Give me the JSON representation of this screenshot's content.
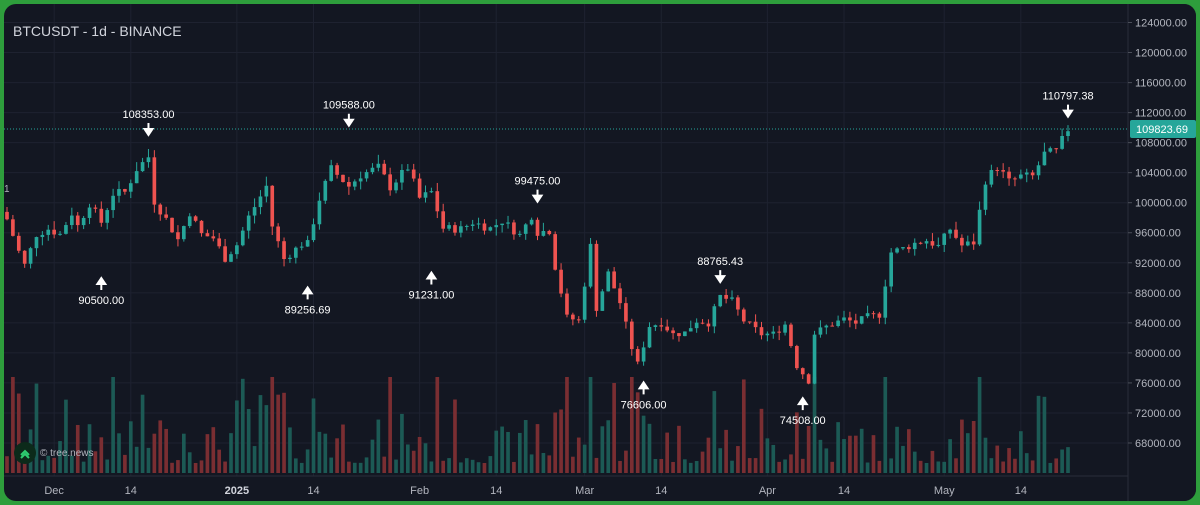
{
  "header": {
    "title": "BTCUSDT - 1d - BINANCE"
  },
  "watermark": {
    "text": "© tree.news",
    "icon": "tree-news-logo-icon"
  },
  "side_marker": "1",
  "colors": {
    "up": "#26a69a",
    "down": "#ef5350",
    "up_volume": "#1c5a55",
    "down_volume": "#7a2e32",
    "background": "#131722",
    "grid": "#1e2230",
    "current_price_badge": "#26a69a"
  },
  "chart_data": {
    "type": "candlestick",
    "title": "BTCUSDT - 1d - BINANCE",
    "x": {
      "start": "2024-11-23",
      "end": "2025-05-22"
    },
    "ylim": [
      66000,
      125000
    ],
    "y_ticks": [
      "124000.00",
      "120000.00",
      "116000.00",
      "112000.00",
      "108000.00",
      "104000.00",
      "100000.00",
      "96000.00",
      "92000.00",
      "88000.00",
      "84000.00",
      "80000.00",
      "76000.00",
      "72000.00",
      "68000.00"
    ],
    "x_ticks": [
      {
        "label": "Dec",
        "date": "2024-12-01"
      },
      {
        "label": "14",
        "date": "2024-12-14"
      },
      {
        "label": "2025",
        "date": "2025-01-01"
      },
      {
        "label": "14",
        "date": "2025-01-14"
      },
      {
        "label": "Feb",
        "date": "2025-02-01"
      },
      {
        "label": "14",
        "date": "2025-02-14"
      },
      {
        "label": "Mar",
        "date": "2025-03-01"
      },
      {
        "label": "14",
        "date": "2025-03-14"
      },
      {
        "label": "Apr",
        "date": "2025-04-01"
      },
      {
        "label": "14",
        "date": "2025-04-14"
      },
      {
        "label": "May",
        "date": "2025-05-01"
      },
      {
        "label": "14",
        "date": "2025-05-14"
      }
    ],
    "current_price": {
      "value": 109823.69,
      "label": "109823.69"
    },
    "annotations": [
      {
        "label": "108353.00",
        "date": "2024-12-17",
        "value": 108353,
        "position": "above"
      },
      {
        "label": "90500.00",
        "date": "2024-12-09",
        "value": 90500,
        "position": "below"
      },
      {
        "label": "109588.00",
        "date": "2025-01-20",
        "value": 109588,
        "position": "above"
      },
      {
        "label": "89256.69",
        "date": "2025-01-13",
        "value": 89256.69,
        "position": "below"
      },
      {
        "label": "91231.00",
        "date": "2025-02-03",
        "value": 91231,
        "position": "below"
      },
      {
        "label": "99475.00",
        "date": "2025-02-21",
        "value": 99475,
        "position": "above"
      },
      {
        "label": "76606.00",
        "date": "2025-03-11",
        "value": 76606,
        "position": "below"
      },
      {
        "label": "88765.43",
        "date": "2025-03-24",
        "value": 88765.43,
        "position": "above"
      },
      {
        "label": "74508.00",
        "date": "2025-04-07",
        "value": 74508,
        "position": "below"
      },
      {
        "label": "110797.38",
        "date": "2025-05-22",
        "value": 110797.38,
        "position": "above"
      }
    ],
    "close_path": [
      [
        "2024-11-23",
        97800
      ],
      [
        "2024-11-25",
        93500
      ],
      [
        "2024-11-26",
        91700
      ],
      [
        "2024-11-28",
        95800
      ],
      [
        "2024-11-30",
        96500
      ],
      [
        "2024-12-02",
        95800
      ],
      [
        "2024-12-04",
        98600
      ],
      [
        "2024-12-05",
        96900
      ],
      [
        "2024-12-07",
        99900
      ],
      [
        "2024-12-09",
        97400
      ],
      [
        "2024-12-11",
        101200
      ],
      [
        "2024-12-13",
        101400
      ],
      [
        "2024-12-15",
        104500
      ],
      [
        "2024-12-17",
        106100
      ],
      [
        "2024-12-18",
        100200
      ],
      [
        "2024-12-20",
        97800
      ],
      [
        "2024-12-22",
        95100
      ],
      [
        "2024-12-24",
        98700
      ],
      [
        "2024-12-26",
        95800
      ],
      [
        "2024-12-28",
        95300
      ],
      [
        "2024-12-30",
        92600
      ],
      [
        "2025-01-01",
        94400
      ],
      [
        "2025-01-03",
        98100
      ],
      [
        "2025-01-06",
        102200
      ],
      [
        "2025-01-07",
        96900
      ],
      [
        "2025-01-09",
        92500
      ],
      [
        "2025-01-12",
        94500
      ],
      [
        "2025-01-13",
        94500
      ],
      [
        "2025-01-15",
        100500
      ],
      [
        "2025-01-17",
        104500
      ],
      [
        "2025-01-20",
        102200
      ],
      [
        "2025-01-22",
        103700
      ],
      [
        "2025-01-25",
        104700
      ],
      [
        "2025-01-27",
        102100
      ],
      [
        "2025-01-30",
        104700
      ],
      [
        "2025-02-01",
        100600
      ],
      [
        "2025-02-03",
        101400
      ],
      [
        "2025-02-05",
        96600
      ],
      [
        "2025-02-08",
        96500
      ],
      [
        "2025-02-10",
        97400
      ],
      [
        "2025-02-13",
        96600
      ],
      [
        "2025-02-15",
        97600
      ],
      [
        "2025-02-18",
        95700
      ],
      [
        "2025-02-20",
        98300
      ],
      [
        "2025-02-21",
        96100
      ],
      [
        "2025-02-23",
        96300
      ],
      [
        "2025-02-24",
        91500
      ],
      [
        "2025-02-26",
        84700
      ],
      [
        "2025-02-28",
        84300
      ],
      [
        "2025-03-02",
        94200
      ],
      [
        "2025-03-03",
        86000
      ],
      [
        "2025-03-05",
        90600
      ],
      [
        "2025-03-07",
        86700
      ],
      [
        "2025-03-09",
        80700
      ],
      [
        "2025-03-10",
        78500
      ],
      [
        "2025-03-12",
        83600
      ],
      [
        "2025-03-14",
        84000
      ],
      [
        "2025-03-16",
        82500
      ],
      [
        "2025-03-18",
        82700
      ],
      [
        "2025-03-20",
        84300
      ],
      [
        "2025-03-22",
        84000
      ],
      [
        "2025-03-24",
        87500
      ],
      [
        "2025-03-26",
        86900
      ],
      [
        "2025-03-28",
        84300
      ],
      [
        "2025-03-31",
        82500
      ],
      [
        "2025-04-02",
        82500
      ],
      [
        "2025-04-04",
        83800
      ],
      [
        "2025-04-06",
        78300
      ],
      [
        "2025-04-08",
        76300
      ],
      [
        "2025-04-09",
        82600
      ],
      [
        "2025-04-11",
        83500
      ],
      [
        "2025-04-14",
        84500
      ],
      [
        "2025-04-16",
        84000
      ],
      [
        "2025-04-18",
        84800
      ],
      [
        "2025-04-20",
        85100
      ],
      [
        "2025-04-22",
        93400
      ],
      [
        "2025-04-24",
        93900
      ],
      [
        "2025-04-26",
        94600
      ],
      [
        "2025-04-28",
        95000
      ],
      [
        "2025-04-30",
        94200
      ],
      [
        "2025-05-02",
        96500
      ],
      [
        "2025-05-04",
        94300
      ],
      [
        "2025-05-06",
        94700
      ],
      [
        "2025-05-08",
        103000
      ],
      [
        "2025-05-10",
        104800
      ],
      [
        "2025-05-12",
        102800
      ],
      [
        "2025-05-14",
        103500
      ],
      [
        "2025-05-16",
        103500
      ],
      [
        "2025-05-18",
        106500
      ],
      [
        "2025-05-20",
        106800
      ],
      [
        "2025-05-22",
        109800
      ]
    ]
  }
}
